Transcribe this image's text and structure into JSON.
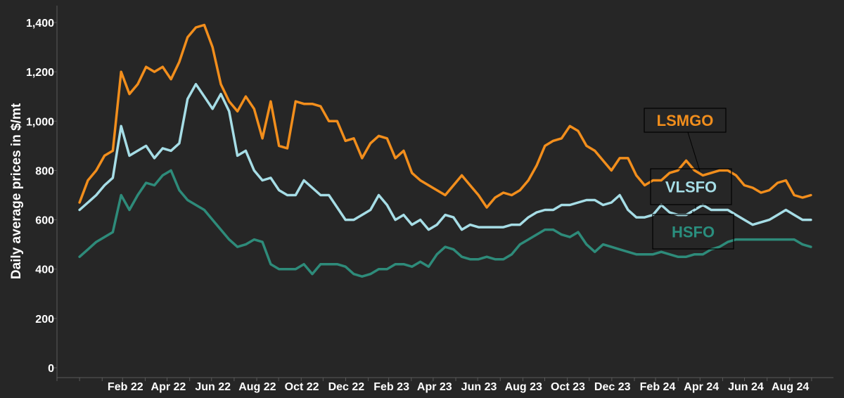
{
  "chart_data": {
    "type": "line",
    "title": "",
    "xlabel": "",
    "ylabel": "Daily average prices in $/mt",
    "x_start": "2022-01-01",
    "x_end": "2024-09-30",
    "xlim": [
      "2021-12-01",
      "2024-10-31"
    ],
    "ylim": [
      0,
      1400
    ],
    "yticks": [
      0,
      200,
      400,
      600,
      800,
      1000,
      1200,
      1400
    ],
    "ytick_labels": [
      "0",
      "200",
      "400",
      "600",
      "800",
      "1,000",
      "1,200",
      "1,400"
    ],
    "xticks": [
      {
        "label": "Feb 22",
        "date": "2022-02-01"
      },
      {
        "label": "Apr 22",
        "date": "2022-04-01"
      },
      {
        "label": "Jun 22",
        "date": "2022-06-01"
      },
      {
        "label": "Aug 22",
        "date": "2022-08-01"
      },
      {
        "label": "Oct 22",
        "date": "2022-10-01"
      },
      {
        "label": "Dec 22",
        "date": "2022-12-01"
      },
      {
        "label": "Feb 23",
        "date": "2023-02-01"
      },
      {
        "label": "Apr 23",
        "date": "2023-04-01"
      },
      {
        "label": "Jun 23",
        "date": "2023-06-01"
      },
      {
        "label": "Aug 23",
        "date": "2023-08-01"
      },
      {
        "label": "Oct 23",
        "date": "2023-10-01"
      },
      {
        "label": "Dec 23",
        "date": "2023-12-01"
      },
      {
        "label": "Feb 24",
        "date": "2024-02-01"
      },
      {
        "label": "Apr 24",
        "date": "2024-04-01"
      },
      {
        "label": "Jun 24",
        "date": "2024-06-01"
      },
      {
        "label": "Aug 24",
        "date": "2024-08-01"
      }
    ],
    "grid": false,
    "legend": "callouts",
    "series": [
      {
        "name": "LSMGO",
        "color": "#f28e1c",
        "label_color": "#f28e1c",
        "values": [
          670,
          760,
          800,
          860,
          880,
          1200,
          1110,
          1150,
          1220,
          1200,
          1220,
          1170,
          1240,
          1340,
          1380,
          1390,
          1300,
          1150,
          1080,
          1040,
          1100,
          1050,
          930,
          1080,
          900,
          890,
          1080,
          1070,
          1070,
          1060,
          1000,
          1000,
          920,
          930,
          850,
          910,
          940,
          930,
          850,
          880,
          790,
          760,
          740,
          720,
          700,
          740,
          780,
          740,
          700,
          650,
          690,
          710,
          700,
          720,
          760,
          820,
          900,
          920,
          930,
          980,
          960,
          900,
          880,
          840,
          800,
          850,
          850,
          780,
          740,
          760,
          760,
          790,
          800,
          840,
          800,
          780,
          790,
          800,
          800,
          780,
          740,
          730,
          710,
          720,
          750,
          760,
          700,
          690,
          700
        ]
      },
      {
        "name": "VLSFO",
        "color": "#a6dde6",
        "label_color": "#a6dde6",
        "values": [
          640,
          670,
          700,
          740,
          770,
          980,
          860,
          880,
          900,
          850,
          890,
          880,
          910,
          1090,
          1150,
          1100,
          1050,
          1110,
          1040,
          860,
          880,
          800,
          760,
          770,
          720,
          700,
          700,
          760,
          730,
          700,
          700,
          650,
          600,
          600,
          620,
          640,
          700,
          660,
          600,
          620,
          580,
          600,
          560,
          580,
          620,
          610,
          560,
          580,
          570,
          570,
          570,
          570,
          580,
          580,
          610,
          630,
          640,
          640,
          660,
          660,
          670,
          680,
          680,
          660,
          670,
          700,
          640,
          610,
          610,
          620,
          660,
          630,
          620,
          620,
          640,
          660,
          640,
          640,
          640,
          620,
          600,
          580,
          590,
          600,
          620,
          640,
          620,
          600,
          600
        ]
      },
      {
        "name": "HSFO",
        "color": "#2e8b7a",
        "label_color": "#2a8e7e",
        "values": [
          450,
          480,
          510,
          530,
          550,
          700,
          640,
          700,
          750,
          740,
          780,
          800,
          720,
          680,
          660,
          640,
          600,
          560,
          520,
          490,
          500,
          520,
          510,
          420,
          400,
          400,
          400,
          420,
          380,
          420,
          420,
          420,
          410,
          380,
          370,
          380,
          400,
          400,
          420,
          420,
          410,
          430,
          410,
          460,
          490,
          480,
          450,
          440,
          440,
          450,
          440,
          440,
          460,
          500,
          520,
          540,
          560,
          560,
          540,
          530,
          550,
          500,
          470,
          500,
          490,
          480,
          470,
          460,
          460,
          460,
          470,
          460,
          450,
          450,
          460,
          460,
          480,
          490,
          510,
          520,
          520,
          520,
          520,
          520,
          520,
          520,
          520,
          500,
          490
        ]
      }
    ]
  }
}
